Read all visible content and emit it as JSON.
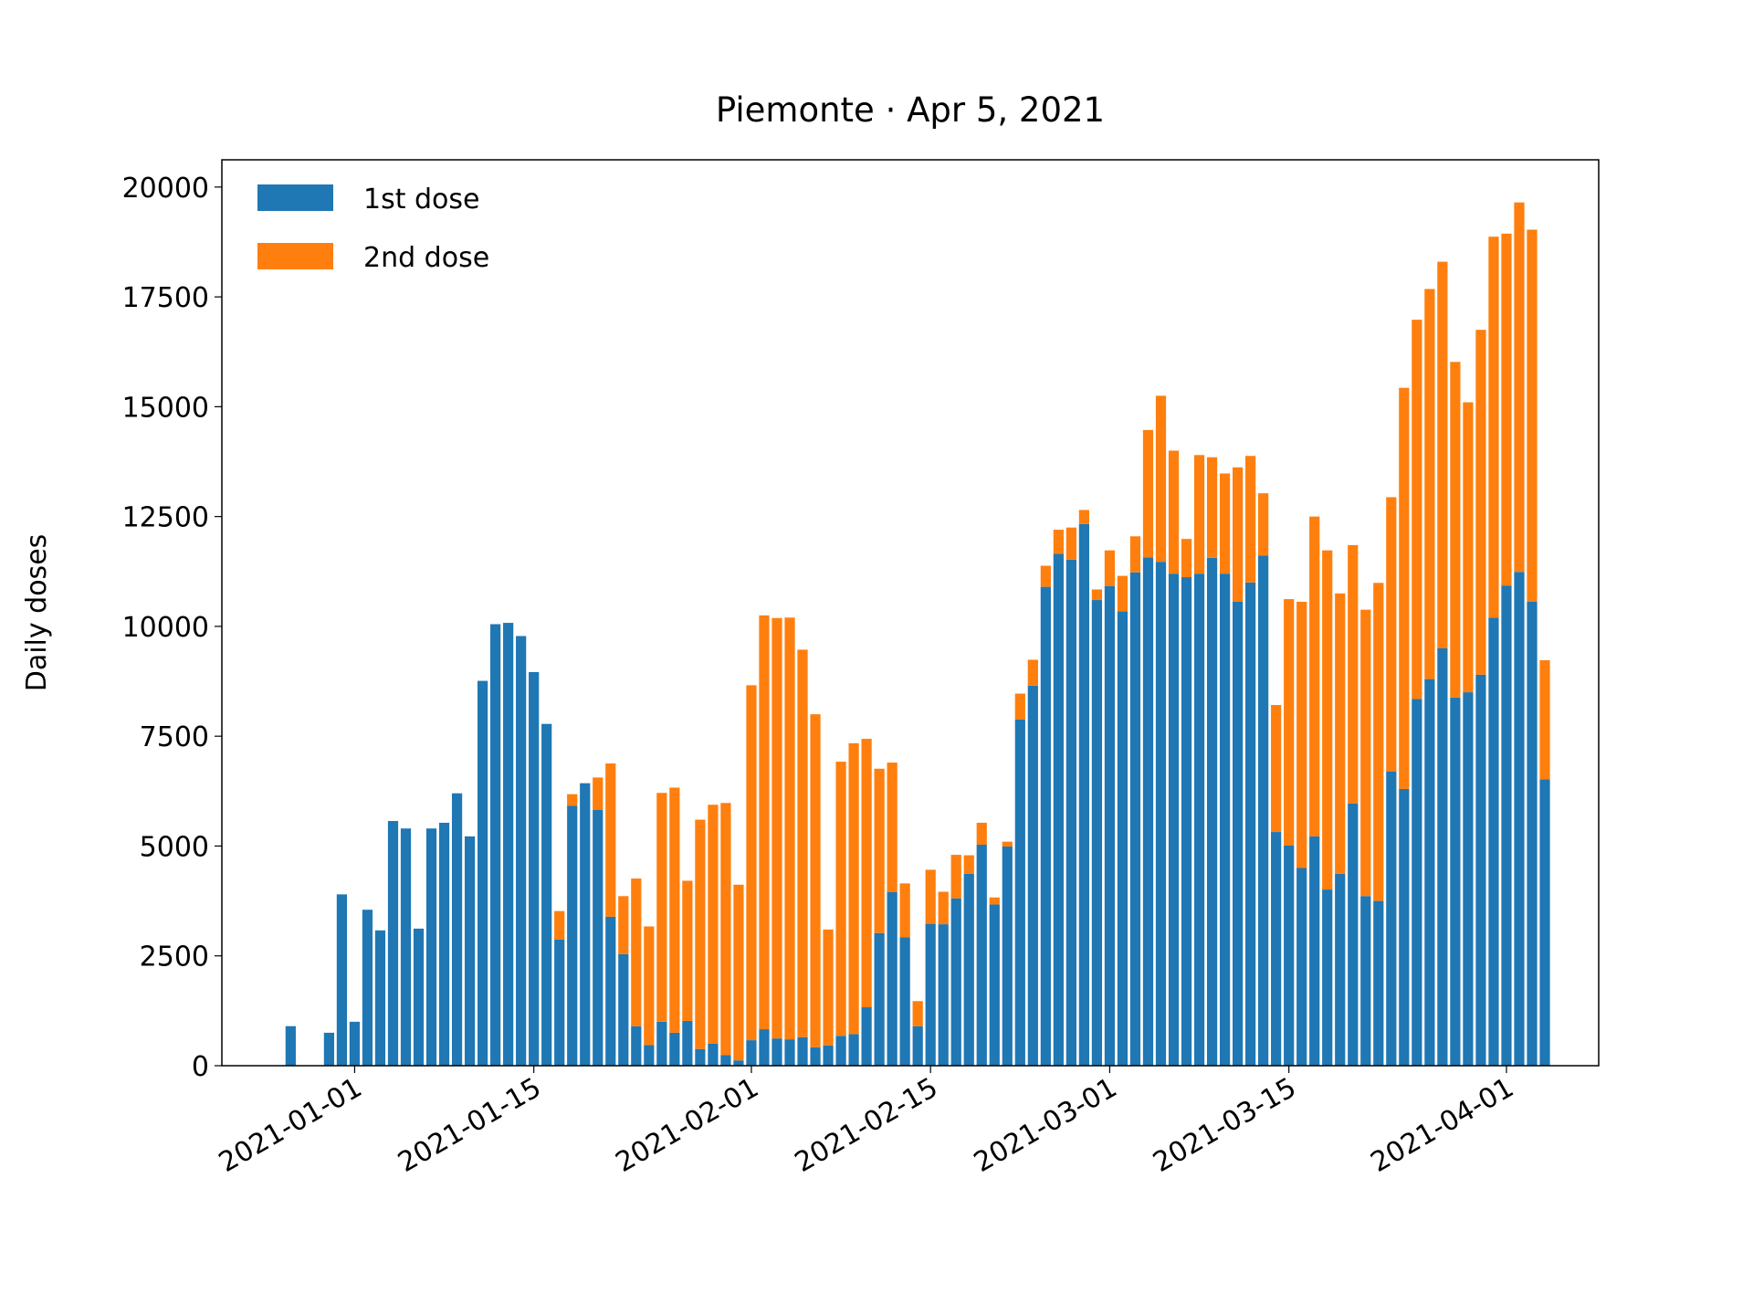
{
  "chart_data": {
    "type": "bar",
    "stacked": true,
    "title": "Piemonte · Apr 5, 2021",
    "ylabel": "Daily doses",
    "x": [
      "2020-12-27",
      "2020-12-28",
      "2020-12-29",
      "2020-12-30",
      "2020-12-31",
      "2021-01-01",
      "2021-01-02",
      "2021-01-03",
      "2021-01-04",
      "2021-01-05",
      "2021-01-06",
      "2021-01-07",
      "2021-01-08",
      "2021-01-09",
      "2021-01-10",
      "2021-01-11",
      "2021-01-12",
      "2021-01-13",
      "2021-01-14",
      "2021-01-15",
      "2021-01-16",
      "2021-01-17",
      "2021-01-18",
      "2021-01-19",
      "2021-01-20",
      "2021-01-21",
      "2021-01-22",
      "2021-01-23",
      "2021-01-24",
      "2021-01-25",
      "2021-01-26",
      "2021-01-27",
      "2021-01-28",
      "2021-01-29",
      "2021-01-30",
      "2021-01-31",
      "2021-02-01",
      "2021-02-02",
      "2021-02-03",
      "2021-02-04",
      "2021-02-05",
      "2021-02-06",
      "2021-02-07",
      "2021-02-08",
      "2021-02-09",
      "2021-02-10",
      "2021-02-11",
      "2021-02-12",
      "2021-02-13",
      "2021-02-14",
      "2021-02-15",
      "2021-02-16",
      "2021-02-17",
      "2021-02-18",
      "2021-02-19",
      "2021-02-20",
      "2021-02-21",
      "2021-02-22",
      "2021-02-23",
      "2021-02-24",
      "2021-02-25",
      "2021-02-26",
      "2021-02-27",
      "2021-02-28",
      "2021-03-01",
      "2021-03-02",
      "2021-03-03",
      "2021-03-04",
      "2021-03-05",
      "2021-03-06",
      "2021-03-07",
      "2021-03-08",
      "2021-03-09",
      "2021-03-10",
      "2021-03-11",
      "2021-03-12",
      "2021-03-13",
      "2021-03-14",
      "2021-03-15",
      "2021-03-16",
      "2021-03-17",
      "2021-03-18",
      "2021-03-19",
      "2021-03-20",
      "2021-03-21",
      "2021-03-22",
      "2021-03-23",
      "2021-03-24",
      "2021-03-25",
      "2021-03-26",
      "2021-03-27",
      "2021-03-28",
      "2021-03-29",
      "2021-03-30",
      "2021-03-31",
      "2021-04-01",
      "2021-04-02",
      "2021-04-03",
      "2021-04-04"
    ],
    "series": [
      {
        "name": "1st dose",
        "color": "#1f77b4",
        "values": [
          900,
          0,
          0,
          750,
          3900,
          1000,
          3550,
          3080,
          5570,
          5400,
          3120,
          5400,
          5530,
          6200,
          5220,
          8760,
          10050,
          10080,
          9780,
          8960,
          7780,
          2870,
          5920,
          6430,
          5820,
          3390,
          2540,
          900,
          470,
          1000,
          750,
          1020,
          380,
          500,
          240,
          120,
          580,
          830,
          620,
          600,
          650,
          420,
          460,
          680,
          720,
          1330,
          3020,
          3950,
          2920,
          900,
          3230,
          3220,
          3810,
          4370,
          5030,
          3670,
          4990,
          7880,
          8650,
          10900,
          11650,
          11520,
          12330,
          10600,
          10920,
          10340,
          11230,
          11570,
          11470,
          11200,
          11120,
          11200,
          11560,
          11200,
          10560,
          11000,
          11610,
          5320,
          5010,
          4500,
          5220,
          4010,
          4370,
          5970,
          3860,
          3750,
          6700,
          6300,
          8350,
          8800,
          9500,
          8380,
          8500,
          8900,
          10200,
          10930,
          11240,
          10560,
          6520
        ]
      },
      {
        "name": "2nd dose",
        "color": "#ff7f0e",
        "values": [
          0,
          0,
          0,
          0,
          0,
          0,
          0,
          0,
          0,
          0,
          0,
          0,
          0,
          0,
          0,
          0,
          0,
          0,
          0,
          0,
          0,
          650,
          260,
          0,
          740,
          3490,
          1320,
          3360,
          2700,
          5210,
          5580,
          3190,
          5220,
          5440,
          5740,
          4000,
          8080,
          9420,
          9570,
          9600,
          8820,
          7580,
          2640,
          6240,
          6620,
          6110,
          3740,
          2950,
          1230,
          570,
          1230,
          740,
          990,
          420,
          500,
          160,
          110,
          590,
          590,
          480,
          550,
          730,
          320,
          240,
          810,
          810,
          820,
          2900,
          3780,
          2800,
          870,
          2700,
          2290,
          2280,
          3060,
          2880,
          1420,
          2890,
          5610,
          6060,
          7280,
          7720,
          6380,
          5880,
          6520,
          7240,
          6240,
          9130,
          8630,
          8880,
          8800,
          7640,
          6600,
          7850,
          8670,
          8010,
          8410,
          8470,
          2710
        ]
      }
    ],
    "xlim": [
      "2020-12-21T15:00",
      "2021-04-08T05:00"
    ],
    "xticks": [
      "2021-01-01",
      "2021-01-15",
      "2021-02-01",
      "2021-02-15",
      "2021-03-01",
      "2021-03-15",
      "2021-04-01"
    ],
    "ylim": [
      0,
      20620
    ],
    "yticks": [
      0,
      2500,
      5000,
      7500,
      10000,
      12500,
      15000,
      17500,
      20000
    ],
    "legend": "upper left"
  }
}
